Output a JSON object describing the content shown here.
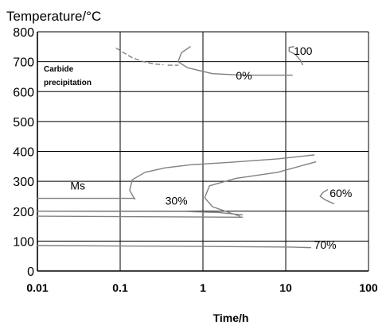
{
  "chart_data": {
    "type": "line",
    "ylabel": "Temperature/°C",
    "xlabel": "Time/h",
    "x_scale": "log",
    "xlim": [
      0.01,
      100
    ],
    "ylim": [
      0,
      800
    ],
    "x_ticks": [
      "0.01",
      "0.1",
      "1",
      "10",
      "100"
    ],
    "y_ticks": [
      "0",
      "100",
      "200",
      "300",
      "400",
      "500",
      "600",
      "700",
      "800"
    ],
    "x_tick_values": [
      0.01,
      0.1,
      1,
      10,
      100
    ],
    "y_tick_values": [
      0,
      100,
      200,
      300,
      400,
      500,
      600,
      700,
      800
    ],
    "grid": true,
    "colors": {
      "curve": "#808080",
      "grid": "#000000"
    },
    "annotation": {
      "line1": "Carbide",
      "line2": "precipitation"
    },
    "series": [
      {
        "name": "0%",
        "label_at": [
          2.5,
          640
        ],
        "points": [
          [
            0.7,
            750
          ],
          [
            0.55,
            730
          ],
          [
            0.5,
            700
          ],
          [
            0.65,
            680
          ],
          [
            1.3,
            660
          ],
          [
            3,
            655
          ],
          [
            12,
            655
          ]
        ]
      },
      {
        "name": "100",
        "label_at": [
          12.5,
          723
        ],
        "points": [
          [
            12.5,
            750
          ],
          [
            11,
            748
          ],
          [
            11,
            735
          ],
          [
            13,
            725
          ],
          [
            15,
            705
          ],
          [
            16,
            690
          ]
        ]
      },
      {
        "name": "",
        "dashed": true,
        "points": [
          [
            0.09,
            745
          ],
          [
            0.11,
            730
          ],
          [
            0.14,
            713
          ],
          [
            0.19,
            700
          ],
          [
            0.26,
            692
          ],
          [
            0.33,
            690
          ]
        ]
      },
      {
        "name": "",
        "dashed": true,
        "points": [
          [
            0.38,
            688
          ],
          [
            0.5,
            688
          ]
        ]
      },
      {
        "name": "30%",
        "label_at": [
          0.35,
          222
        ],
        "points": [
          [
            0.15,
            240
          ],
          [
            0.13,
            270
          ],
          [
            0.14,
            305
          ],
          [
            0.2,
            330
          ],
          [
            0.35,
            345
          ],
          [
            0.7,
            355
          ],
          [
            2,
            363
          ],
          [
            8,
            375
          ],
          [
            22,
            388
          ]
        ]
      },
      {
        "name": "",
        "points": [
          [
            2.8,
            183
          ],
          [
            1.3,
            215
          ],
          [
            1.05,
            245
          ],
          [
            1.2,
            285
          ],
          [
            2.5,
            310
          ],
          [
            8,
            330
          ],
          [
            23,
            365
          ]
        ]
      },
      {
        "name": "Ms",
        "label_at": [
          0.025,
          272
        ],
        "points": [
          [
            0.01,
            243
          ],
          [
            0.15,
            243
          ]
        ]
      },
      {
        "name": "",
        "points": [
          [
            0.01,
            200
          ],
          [
            0.6,
            199
          ],
          [
            1.5,
            196
          ],
          [
            3,
            188
          ]
        ]
      },
      {
        "name": "",
        "points": [
          [
            0.01,
            183
          ],
          [
            3,
            180
          ]
        ]
      },
      {
        "name": "60%",
        "label_at": [
          34,
          247
        ],
        "points": [
          [
            32,
            272
          ],
          [
            28,
            262
          ],
          [
            26,
            250
          ],
          [
            30,
            238
          ],
          [
            38,
            225
          ]
        ]
      },
      {
        "name": "70%",
        "label_at": [
          22,
          75
        ],
        "points": [
          [
            0.01,
            85
          ],
          [
            1,
            82
          ],
          [
            12,
            80
          ],
          [
            20,
            78
          ]
        ]
      }
    ]
  }
}
